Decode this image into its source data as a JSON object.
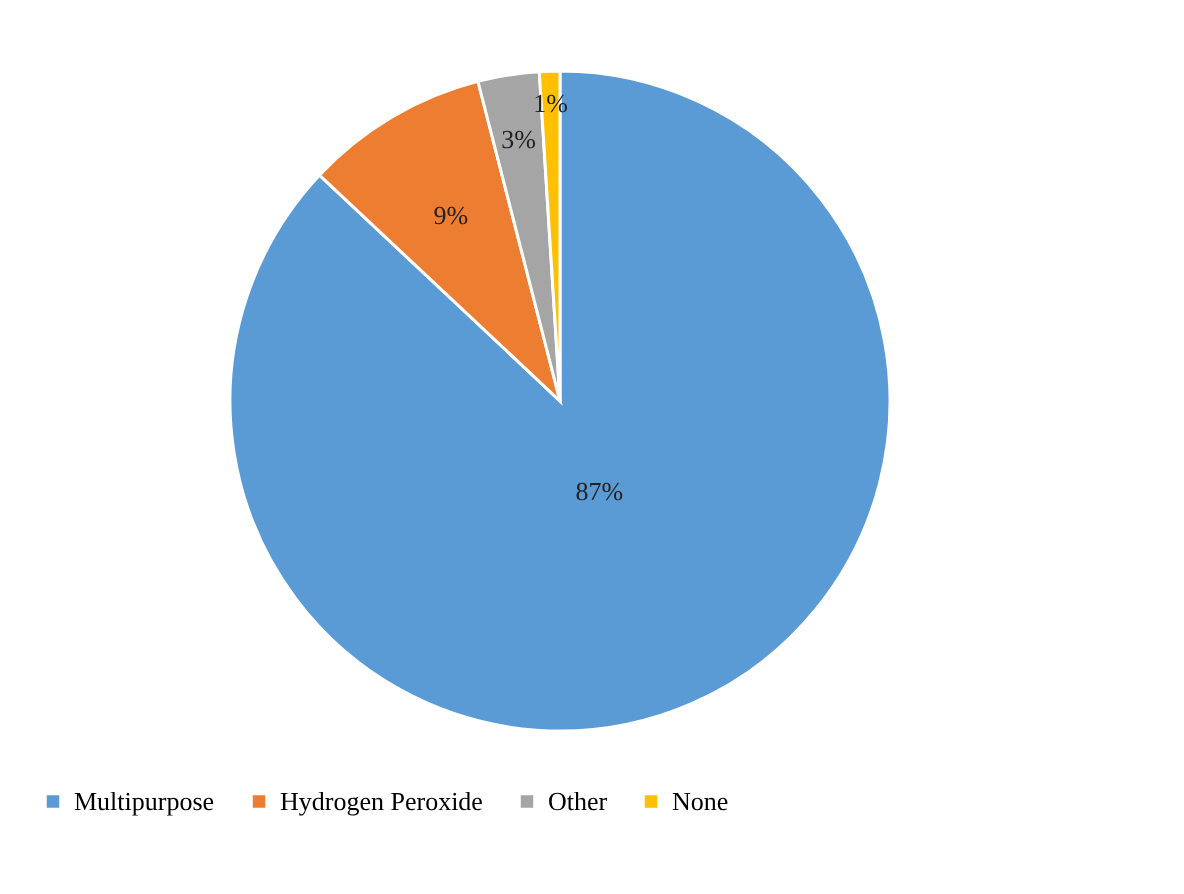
{
  "chart_data": {
    "type": "pie",
    "categories": [
      "Multipurpose",
      "Hydrogen Peroxide",
      "Other",
      "None"
    ],
    "values": [
      87,
      9,
      3,
      1
    ],
    "colors": [
      "#5b9bd5",
      "#ed7d31",
      "#a5a5a5",
      "#ffc000"
    ],
    "value_labels": [
      "87%",
      "9%",
      "3%",
      "1%"
    ],
    "legend": "bottom"
  }
}
